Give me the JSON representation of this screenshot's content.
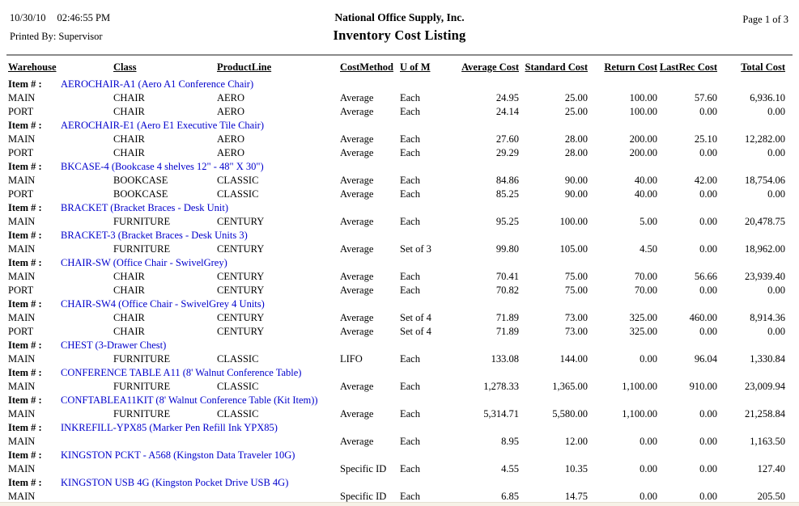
{
  "page": {
    "datetime_date": "10/30/10",
    "datetime_time": "02:46:55 PM",
    "printed_by": "Printed By: Supervisor",
    "company_name": "National Office Supply, Inc.",
    "report_title": "Inventory Cost Listing",
    "page_indicator": "Page 1 of 3"
  },
  "colors": {
    "item_link_blue": "#0000CC",
    "divider_gray": "#8A8A8A",
    "bottom_edge_cream": "#F6F2E7"
  },
  "table": {
    "item_row_label": "Item # :",
    "columns": [
      "Warehouse",
      "Class",
      "ProductLine",
      "CostMethod",
      "U of M",
      "Average Cost",
      "Standard Cost",
      "Return Cost",
      "LastRec Cost",
      "Total Cost"
    ],
    "groups": [
      {
        "item": "AEROCHAIR-A1 (Aero A1 Conference Chair)",
        "rows": [
          [
            "MAIN",
            "CHAIR",
            "AERO",
            "Average",
            "Each",
            "24.95",
            "25.00",
            "100.00",
            "57.60",
            "6,936.10"
          ],
          [
            "PORT",
            "CHAIR",
            "AERO",
            "Average",
            "Each",
            "24.14",
            "25.00",
            "100.00",
            "0.00",
            "0.00"
          ]
        ]
      },
      {
        "item": "AEROCHAIR-E1 (Aero E1 Executive Tile Chair)",
        "rows": [
          [
            "MAIN",
            "CHAIR",
            "AERO",
            "Average",
            "Each",
            "27.60",
            "28.00",
            "200.00",
            "25.10",
            "12,282.00"
          ],
          [
            "PORT",
            "CHAIR",
            "AERO",
            "Average",
            "Each",
            "29.29",
            "28.00",
            "200.00",
            "0.00",
            "0.00"
          ]
        ]
      },
      {
        "item": "BKCASE-4 (Bookcase 4 shelves 12\" - 48\" X 30\")",
        "rows": [
          [
            "MAIN",
            "BOOKCASE",
            "CLASSIC",
            "Average",
            "Each",
            "84.86",
            "90.00",
            "40.00",
            "42.00",
            "18,754.06"
          ],
          [
            "PORT",
            "BOOKCASE",
            "CLASSIC",
            "Average",
            "Each",
            "85.25",
            "90.00",
            "40.00",
            "0.00",
            "0.00"
          ]
        ]
      },
      {
        "item": "BRACKET (Bracket Braces - Desk Unit)",
        "rows": [
          [
            "MAIN",
            "FURNITURE",
            "CENTURY",
            "Average",
            "Each",
            "95.25",
            "100.00",
            "5.00",
            "0.00",
            "20,478.75"
          ]
        ]
      },
      {
        "item": "BRACKET-3 (Bracket Braces - Desk Units 3)",
        "rows": [
          [
            "MAIN",
            "FURNITURE",
            "CENTURY",
            "Average",
            "Set of 3",
            "99.80",
            "105.00",
            "4.50",
            "0.00",
            "18,962.00"
          ]
        ]
      },
      {
        "item": "CHAIR-SW (Office Chair - SwivelGrey)",
        "rows": [
          [
            "MAIN",
            "CHAIR",
            "CENTURY",
            "Average",
            "Each",
            "70.41",
            "75.00",
            "70.00",
            "56.66",
            "23,939.40"
          ],
          [
            "PORT",
            "CHAIR",
            "CENTURY",
            "Average",
            "Each",
            "70.82",
            "75.00",
            "70.00",
            "0.00",
            "0.00"
          ]
        ]
      },
      {
        "item": "CHAIR-SW4 (Office Chair - SwivelGrey 4 Units)",
        "rows": [
          [
            "MAIN",
            "CHAIR",
            "CENTURY",
            "Average",
            "Set of 4",
            "71.89",
            "73.00",
            "325.00",
            "460.00",
            "8,914.36"
          ],
          [
            "PORT",
            "CHAIR",
            "CENTURY",
            "Average",
            "Set of 4",
            "71.89",
            "73.00",
            "325.00",
            "0.00",
            "0.00"
          ]
        ]
      },
      {
        "item": "CHEST (3-Drawer Chest)",
        "rows": [
          [
            "MAIN",
            "FURNITURE",
            "CLASSIC",
            "LIFO",
            "Each",
            "133.08",
            "144.00",
            "0.00",
            "96.04",
            "1,330.84"
          ]
        ]
      },
      {
        "item": "CONFERENCE TABLE A11 (8' Walnut Conference Table)",
        "rows": [
          [
            "MAIN",
            "FURNITURE",
            "CLASSIC",
            "Average",
            "Each",
            "1,278.33",
            "1,365.00",
            "1,100.00",
            "910.00",
            "23,009.94"
          ]
        ]
      },
      {
        "item": "CONFTABLEA11KIT (8' Walnut Conference Table (Kit Item))",
        "rows": [
          [
            "MAIN",
            "FURNITURE",
            "CLASSIC",
            "Average",
            "Each",
            "5,314.71",
            "5,580.00",
            "1,100.00",
            "0.00",
            "21,258.84"
          ]
        ]
      },
      {
        "item": "INKREFILL-YPX85 (Marker Pen Refill Ink YPX85)",
        "rows": [
          [
            "MAIN",
            "",
            "",
            "Average",
            "Each",
            "8.95",
            "12.00",
            "0.00",
            "0.00",
            "1,163.50"
          ]
        ]
      },
      {
        "item": "KINGSTON PCKT - A568 (Kingston Data Traveler 10G)",
        "rows": [
          [
            "MAIN",
            "",
            "",
            "Specific ID",
            "Each",
            "4.55",
            "10.35",
            "0.00",
            "0.00",
            "127.40"
          ]
        ]
      },
      {
        "item": "KINGSTON USB 4G (Kingston Pocket Drive USB 4G)",
        "rows": [
          [
            "MAIN",
            "",
            "",
            "Specific ID",
            "Each",
            "6.85",
            "14.75",
            "0.00",
            "0.00",
            "205.50"
          ]
        ]
      }
    ]
  }
}
